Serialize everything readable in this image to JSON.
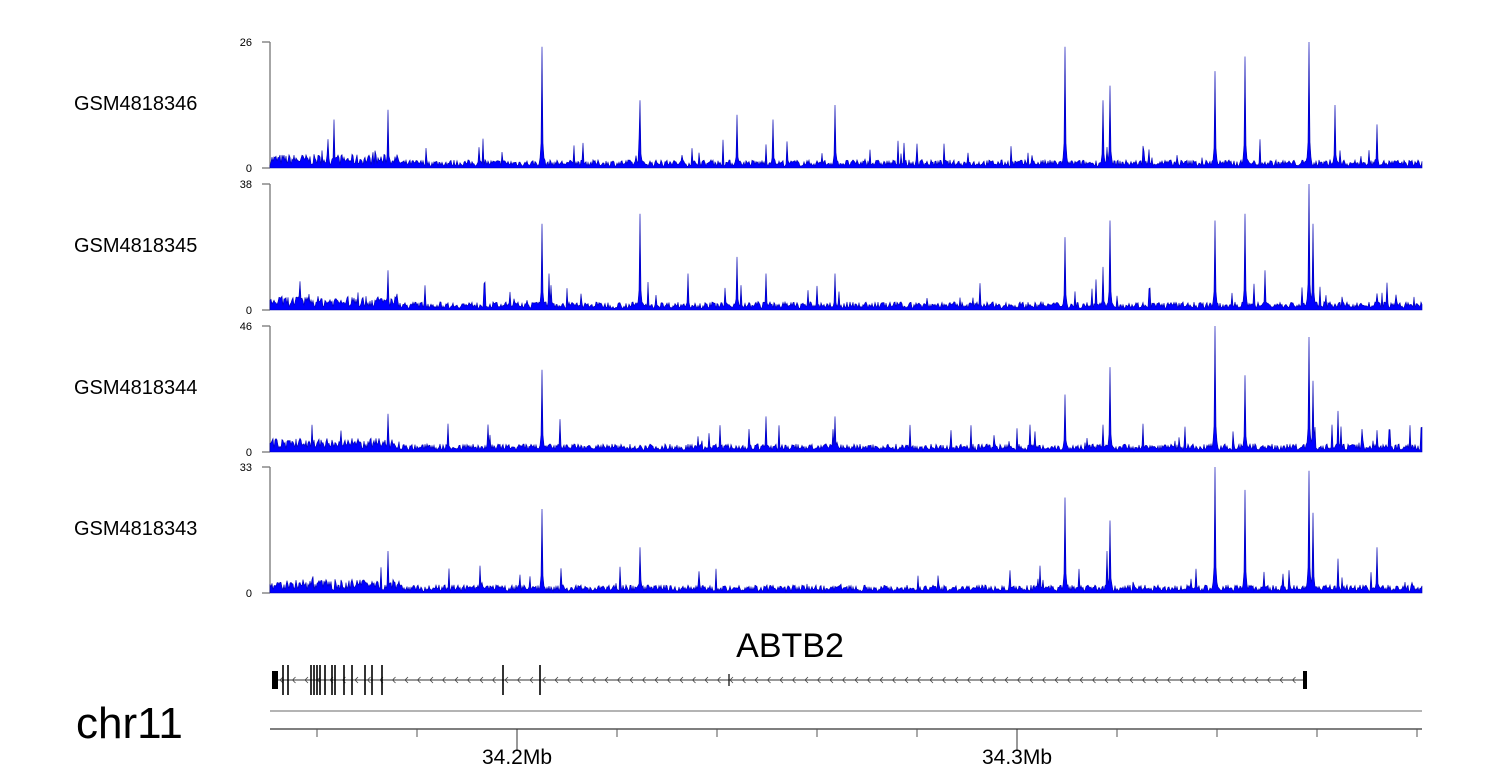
{
  "chart_data": {
    "type": "area",
    "title": "",
    "chromosome": "chr11",
    "xlim_mb": [
      34.1506,
      34.381
    ],
    "x_tick_labels": [
      {
        "pos": 34.2,
        "label": "34.2Mb"
      },
      {
        "pos": 34.3,
        "label": "34.3Mb"
      }
    ],
    "minor_tick_step_mb": 0.02,
    "color": "#0000ff",
    "series": [
      {
        "name": "GSM4818346",
        "ylim": [
          0,
          26
        ],
        "ymax_label": "26",
        "ymin_label": "0",
        "peaks": [
          [
            34.1634,
            10
          ],
          [
            34.1742,
            12
          ],
          [
            34.205,
            25
          ],
          [
            34.2246,
            14
          ],
          [
            34.244,
            11
          ],
          [
            34.2512,
            10
          ],
          [
            34.2636,
            13
          ],
          [
            34.3096,
            25
          ],
          [
            34.3172,
            14
          ],
          [
            34.3186,
            17
          ],
          [
            34.3396,
            20
          ],
          [
            34.3456,
            23
          ],
          [
            34.3584,
            26
          ],
          [
            34.3636,
            13
          ],
          [
            34.372,
            9
          ]
        ]
      },
      {
        "name": "GSM4818345",
        "ylim": [
          0,
          38
        ],
        "ymax_label": "38",
        "ymin_label": "0",
        "peaks": [
          [
            34.1742,
            12
          ],
          [
            34.205,
            26
          ],
          [
            34.2064,
            11
          ],
          [
            34.2246,
            29
          ],
          [
            34.2342,
            11
          ],
          [
            34.244,
            16
          ],
          [
            34.2498,
            11
          ],
          [
            34.2636,
            11
          ],
          [
            34.3096,
            22
          ],
          [
            34.3172,
            13
          ],
          [
            34.3186,
            27
          ],
          [
            34.3396,
            27
          ],
          [
            34.3456,
            29
          ],
          [
            34.3496,
            12
          ],
          [
            34.3584,
            38
          ],
          [
            34.3592,
            26
          ],
          [
            34.372,
            5
          ]
        ]
      },
      {
        "name": "GSM4818344",
        "ylim": [
          0,
          46
        ],
        "ymax_label": "46",
        "ymin_label": "0",
        "peaks": [
          [
            34.1742,
            14
          ],
          [
            34.205,
            30
          ],
          [
            34.2086,
            12
          ],
          [
            34.2498,
            13
          ],
          [
            34.2636,
            13
          ],
          [
            34.3026,
            10
          ],
          [
            34.3096,
            21
          ],
          [
            34.3172,
            10
          ],
          [
            34.3186,
            31
          ],
          [
            34.3396,
            46
          ],
          [
            34.3456,
            28
          ],
          [
            34.3584,
            42
          ],
          [
            34.3592,
            26
          ],
          [
            34.3642,
            15
          ],
          [
            34.372,
            8
          ],
          [
            34.381,
            9
          ]
        ]
      },
      {
        "name": "GSM4818343",
        "ylim": [
          0,
          33
        ],
        "ymax_label": "33",
        "ymin_label": "0",
        "peaks": [
          [
            34.1742,
            11
          ],
          [
            34.205,
            22
          ],
          [
            34.2246,
            12
          ],
          [
            34.3096,
            25
          ],
          [
            34.318,
            11
          ],
          [
            34.3186,
            19
          ],
          [
            34.3396,
            33
          ],
          [
            34.3456,
            27
          ],
          [
            34.3584,
            32
          ],
          [
            34.3592,
            21
          ],
          [
            34.3642,
            9
          ],
          [
            34.372,
            12
          ]
        ]
      }
    ],
    "gene": {
      "name": "ABTB2",
      "strand": "-",
      "start": 34.151,
      "end": 34.358,
      "exons": [
        [
          34.151,
          34.1522,
          "thick"
        ],
        [
          34.1532,
          34.1532
        ],
        [
          34.1542,
          34.1542
        ],
        [
          34.1588,
          34.1588
        ],
        [
          34.1594,
          34.1594
        ],
        [
          34.16,
          34.16
        ],
        [
          34.1606,
          34.1606
        ],
        [
          34.1616,
          34.1616
        ],
        [
          34.163,
          34.163
        ],
        [
          34.1636,
          34.1636
        ],
        [
          34.1654,
          34.1654
        ],
        [
          34.167,
          34.167
        ],
        [
          34.1696,
          34.1696
        ],
        [
          34.171,
          34.171
        ],
        [
          34.173,
          34.173
        ],
        [
          34.1972,
          34.1972
        ],
        [
          34.2046,
          34.2046
        ],
        [
          34.2424,
          34.2424,
          "small"
        ],
        [
          34.3572,
          34.358,
          "thick"
        ]
      ]
    }
  }
}
